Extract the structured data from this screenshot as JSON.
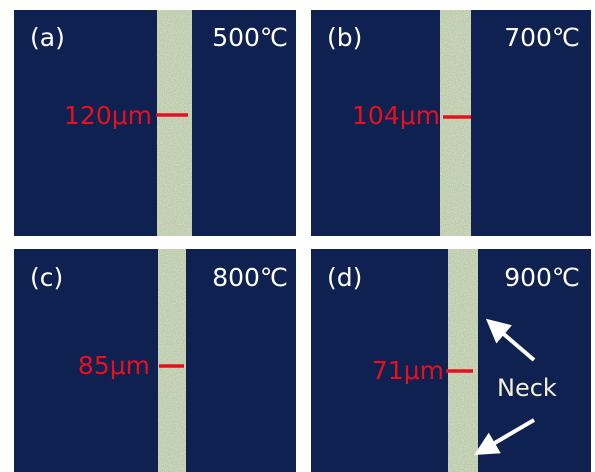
{
  "panels": [
    {
      "label": "(a)",
      "temperature": "500℃",
      "width": "120μm"
    },
    {
      "label": "(b)",
      "temperature": "700℃",
      "width": "104μm"
    },
    {
      "label": "(c)",
      "temperature": "800℃",
      "width": "85μm"
    },
    {
      "label": "(d)",
      "temperature": "900℃",
      "width": "71μm",
      "annotation": "Neck"
    }
  ]
}
